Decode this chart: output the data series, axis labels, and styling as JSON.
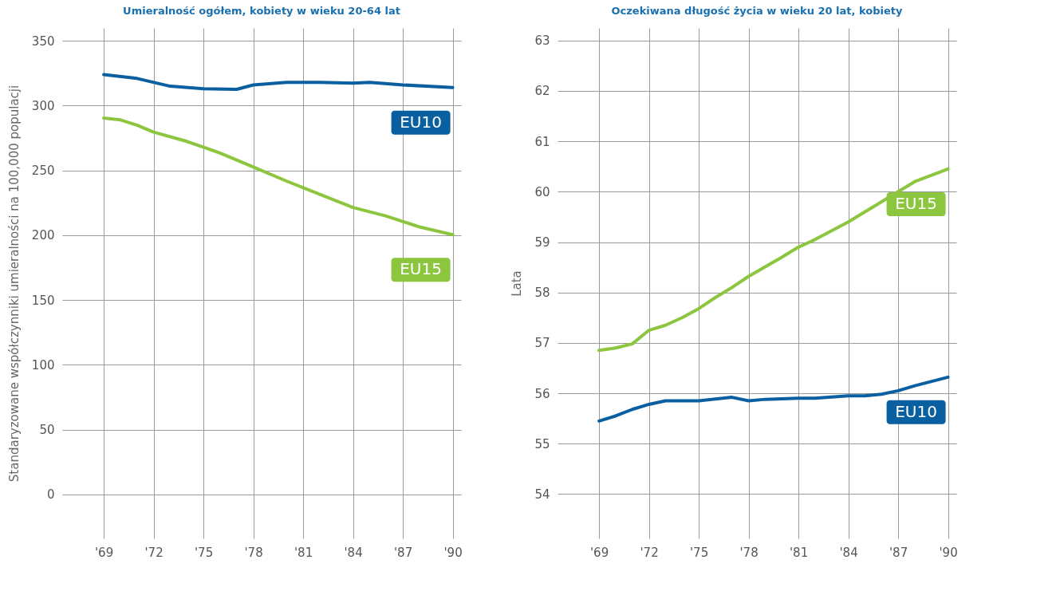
{
  "chart_data": [
    {
      "type": "line",
      "title": "Umieralność ogółem, kobiety w wieku 20-64 lat",
      "ylabel": "Standaryzowane współczynniki umieralności na 100,000 populacji",
      "grid": true,
      "line_style": "solid",
      "xlim": [
        1966.5,
        1990.5
      ],
      "ylim": [
        -34,
        360
      ],
      "xticks": [
        {
          "value": 1969,
          "label": "'69"
        },
        {
          "value": 1972,
          "label": "'72"
        },
        {
          "value": 1975,
          "label": "'75"
        },
        {
          "value": 1978,
          "label": "'78"
        },
        {
          "value": 1981,
          "label": "'81"
        },
        {
          "value": 1984,
          "label": "'84"
        },
        {
          "value": 1987,
          "label": "'87"
        },
        {
          "value": 1990,
          "label": "'90"
        }
      ],
      "yticks": [
        0,
        50,
        100,
        150,
        200,
        250,
        300,
        350
      ],
      "series": [
        {
          "name": "EU10",
          "color": "#0a5fa0",
          "x": [
            1969,
            1971,
            1973,
            1975,
            1977,
            1978,
            1980,
            1982,
            1984,
            1985,
            1987,
            1990
          ],
          "values": [
            324,
            321,
            315,
            313,
            312.6,
            316,
            318,
            318,
            317.4,
            318,
            316,
            314
          ]
        },
        {
          "name": "EU15",
          "color": "#8cc63f",
          "x": [
            1969,
            1970,
            1971,
            1972,
            1974,
            1976,
            1978,
            1980,
            1982,
            1984,
            1986,
            1988,
            1990
          ],
          "values": [
            290.4,
            289,
            285,
            279.6,
            272.4,
            263.4,
            252.6,
            241.8,
            231.6,
            221.4,
            214.8,
            206.4,
            200.4
          ]
        }
      ]
    },
    {
      "type": "line",
      "title": "Oczekiwana długość życia w wieku 20 lat, kobiety",
      "ylabel": "Lata",
      "grid": true,
      "line_style": "solid",
      "xlim": [
        1966.5,
        1990.5
      ],
      "ylim": [
        53.12,
        63.25
      ],
      "xticks": [
        {
          "value": 1969,
          "label": "'69"
        },
        {
          "value": 1972,
          "label": "'72"
        },
        {
          "value": 1975,
          "label": "'75"
        },
        {
          "value": 1978,
          "label": "'78"
        },
        {
          "value": 1981,
          "label": "'81"
        },
        {
          "value": 1984,
          "label": "'84"
        },
        {
          "value": 1987,
          "label": "'87"
        },
        {
          "value": 1990,
          "label": "'90"
        }
      ],
      "yticks": [
        54,
        55,
        56,
        57,
        58,
        59,
        60,
        61,
        62,
        63
      ],
      "series": [
        {
          "name": "EU15",
          "color": "#8cc63f",
          "x": [
            1969,
            1970,
            1971,
            1972,
            1973,
            1974,
            1975,
            1976,
            1977,
            1978,
            1980,
            1981,
            1982,
            1984,
            1986,
            1987,
            1988,
            1990
          ],
          "values": [
            56.85,
            56.9,
            56.98,
            57.25,
            57.35,
            57.5,
            57.68,
            57.9,
            58.1,
            58.32,
            58.7,
            58.9,
            59.05,
            59.4,
            59.8,
            60.0,
            60.2,
            60.45
          ]
        },
        {
          "name": "EU10",
          "color": "#0a5fa0",
          "x": [
            1969,
            1970,
            1971,
            1972,
            1973,
            1975,
            1977,
            1978,
            1979,
            1981,
            1982,
            1984,
            1985,
            1986,
            1987,
            1988,
            1990
          ],
          "values": [
            55.45,
            55.55,
            55.68,
            55.78,
            55.85,
            55.85,
            55.92,
            55.85,
            55.88,
            55.9,
            55.9,
            55.95,
            55.95,
            55.98,
            56.05,
            56.15,
            56.32
          ]
        }
      ]
    }
  ]
}
